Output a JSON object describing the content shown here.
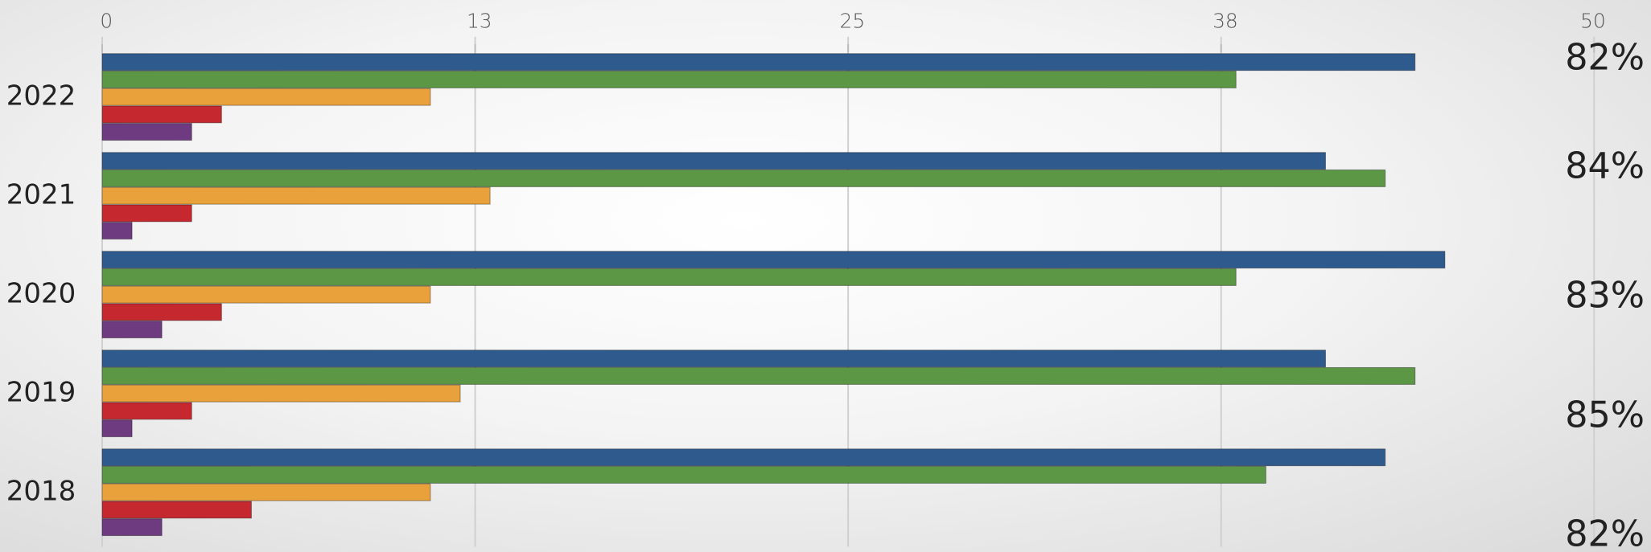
{
  "chart_data": {
    "type": "bar",
    "orientation": "horizontal",
    "categories": [
      "2022",
      "2021",
      "2020",
      "2019",
      "2018"
    ],
    "series": [
      {
        "color": "#2e5a8e",
        "values": [
          44,
          41,
          45,
          41,
          43
        ]
      },
      {
        "color": "#5c9746",
        "values": [
          38,
          43,
          38,
          44,
          39
        ]
      },
      {
        "color": "#e9a23b",
        "values": [
          11,
          13,
          11,
          12,
          11
        ]
      },
      {
        "color": "#c6282f",
        "values": [
          4,
          3,
          4,
          3,
          5
        ]
      },
      {
        "color": "#6e3a80",
        "values": [
          3,
          1,
          2,
          1,
          2
        ]
      }
    ],
    "annotations": [
      "82%",
      "84%",
      "83%",
      "85%",
      "82%"
    ],
    "xlim": [
      0,
      50
    ],
    "xticks": [
      0,
      {
        "value": 12.5,
        "label": "13"
      },
      25,
      {
        "value": 37.5,
        "label": "38"
      },
      50
    ],
    "grid": true
  }
}
